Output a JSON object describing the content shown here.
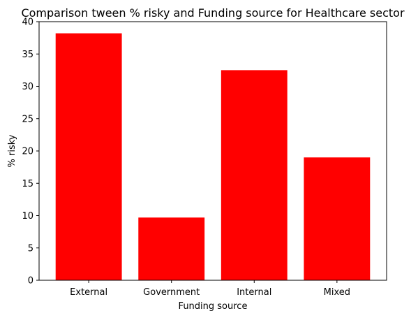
{
  "chart_data": {
    "type": "bar",
    "title": "Comparison tween % risky and Funding source for Healthcare sector",
    "xlabel": "Funding source",
    "ylabel": "% risky",
    "categories": [
      "External",
      "Government",
      "Internal",
      "Mixed"
    ],
    "values": [
      38.2,
      9.7,
      32.5,
      19.0
    ],
    "ylim": [
      0,
      40
    ],
    "yticks": [
      0,
      5,
      10,
      15,
      20,
      25,
      30,
      35,
      40
    ],
    "bar_color": "#ff0000",
    "grid": false,
    "legend": "none"
  }
}
